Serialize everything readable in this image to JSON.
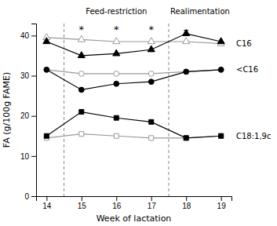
{
  "chart_data": {
    "type": "line",
    "xlabel": "Week of lactation",
    "ylabel": "FA (g/100g FAME)",
    "x": [
      14,
      15,
      16,
      17,
      18,
      19
    ],
    "xlim": [
      13.7,
      19.3
    ],
    "xticks": [
      14,
      15,
      16,
      17,
      18,
      19
    ],
    "ylim": [
      0,
      43
    ],
    "yticks": [
      0,
      10,
      20,
      30,
      40
    ],
    "series": [
      {
        "label": "C16",
        "color": "#999999",
        "marker": "triangle-open",
        "values": [
          39.5,
          39.0,
          38.5,
          38.5,
          38.5,
          38.0
        ]
      },
      {
        "color": "#000000",
        "marker": "triangle",
        "values": [
          38.5,
          35.0,
          35.5,
          36.5,
          40.5,
          38.5
        ],
        "error_lo": [
          null,
          null,
          null,
          null,
          0.5,
          null
        ],
        "error_hi": [
          null,
          null,
          null,
          null,
          0.8,
          null
        ]
      },
      {
        "label": "<C16",
        "color": "#999999",
        "marker": "circle-open",
        "values": [
          31.5,
          30.5,
          30.5,
          30.5,
          31.0,
          31.5
        ]
      },
      {
        "color": "#000000",
        "marker": "circle",
        "values": [
          31.5,
          26.5,
          28.0,
          28.5,
          31.0,
          31.5
        ]
      },
      {
        "label": "C18:1,9c",
        "color": "#999999",
        "marker": "square-open",
        "values": [
          14.5,
          15.5,
          15.0,
          14.5,
          14.5,
          15.0
        ]
      },
      {
        "color": "#000000",
        "marker": "square",
        "values": [
          15.0,
          21.0,
          19.5,
          18.5,
          14.5,
          15.0
        ]
      }
    ],
    "vlines": [
      14.5,
      17.5
    ],
    "section_labels": [
      "Feed-restriction",
      "Realimentation"
    ],
    "annotations": [
      {
        "text": "*",
        "x": 15
      },
      {
        "text": "*",
        "x": 16
      },
      {
        "text": "*",
        "x": 17
      }
    ]
  }
}
